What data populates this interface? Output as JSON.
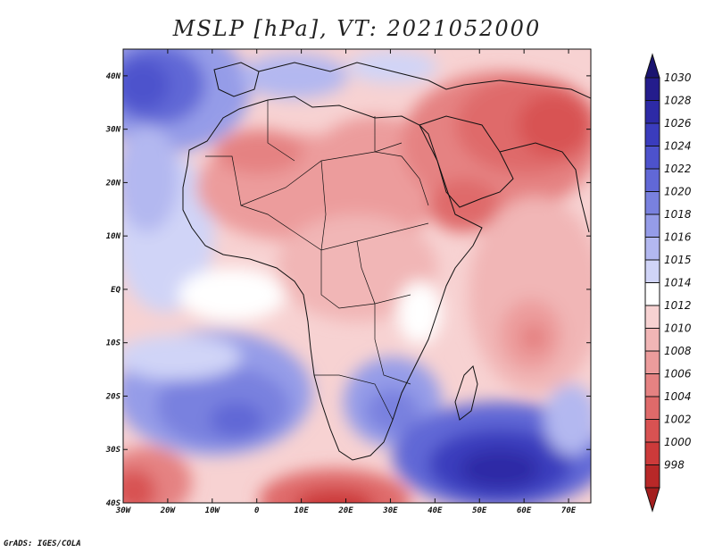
{
  "title": "MSLP [hPa], VT: 2021052000",
  "credit": "GrADS: IGES/COLA",
  "map": {
    "lon_range": [
      -30,
      75
    ],
    "lat_range": [
      -40,
      45
    ],
    "lon_ticks": [
      {
        "value": -30,
        "label": "30W"
      },
      {
        "value": -20,
        "label": "20W"
      },
      {
        "value": -10,
        "label": "10W"
      },
      {
        "value": 0,
        "label": "0"
      },
      {
        "value": 10,
        "label": "10E"
      },
      {
        "value": 20,
        "label": "20E"
      },
      {
        "value": 30,
        "label": "30E"
      },
      {
        "value": 40,
        "label": "40E"
      },
      {
        "value": 50,
        "label": "50E"
      },
      {
        "value": 60,
        "label": "60E"
      },
      {
        "value": 70,
        "label": "70E"
      }
    ],
    "lat_ticks": [
      {
        "value": 40,
        "label": "40N"
      },
      {
        "value": 30,
        "label": "30N"
      },
      {
        "value": 20,
        "label": "20N"
      },
      {
        "value": 10,
        "label": "10N"
      },
      {
        "value": 0,
        "label": "EQ"
      },
      {
        "value": -10,
        "label": "10S"
      },
      {
        "value": -20,
        "label": "20S"
      },
      {
        "value": -30,
        "label": "30S"
      },
      {
        "value": -40,
        "label": "40S"
      }
    ]
  },
  "colorbar": {
    "levels": [
      {
        "label": "1030",
        "color": "#241c8c"
      },
      {
        "label": "1028",
        "color": "#2d2aa6"
      },
      {
        "label": "1026",
        "color": "#3a3cbd"
      },
      {
        "label": "1024",
        "color": "#4d52cc"
      },
      {
        "label": "1022",
        "color": "#6168d6"
      },
      {
        "label": "1020",
        "color": "#7981df"
      },
      {
        "label": "1018",
        "color": "#959ce8"
      },
      {
        "label": "1016",
        "color": "#b3b8f0"
      },
      {
        "label": "1015",
        "color": "#d0d4f7"
      },
      {
        "label": "1014",
        "color": "#ffffff"
      },
      {
        "label": "1012",
        "color": "#f7d2d2"
      },
      {
        "label": "1010",
        "color": "#f1b6b6"
      },
      {
        "label": "1008",
        "color": "#ec9c9c"
      },
      {
        "label": "1006",
        "color": "#e58282"
      },
      {
        "label": "1004",
        "color": "#df6a6a"
      },
      {
        "label": "1002",
        "color": "#d85252"
      },
      {
        "label": "1000",
        "color": "#cc3a3a"
      },
      {
        "label": "998",
        "color": "#b82828"
      }
    ],
    "top_arrow_color": "#1a1470",
    "bottom_arrow_color": "#a41e1e"
  }
}
